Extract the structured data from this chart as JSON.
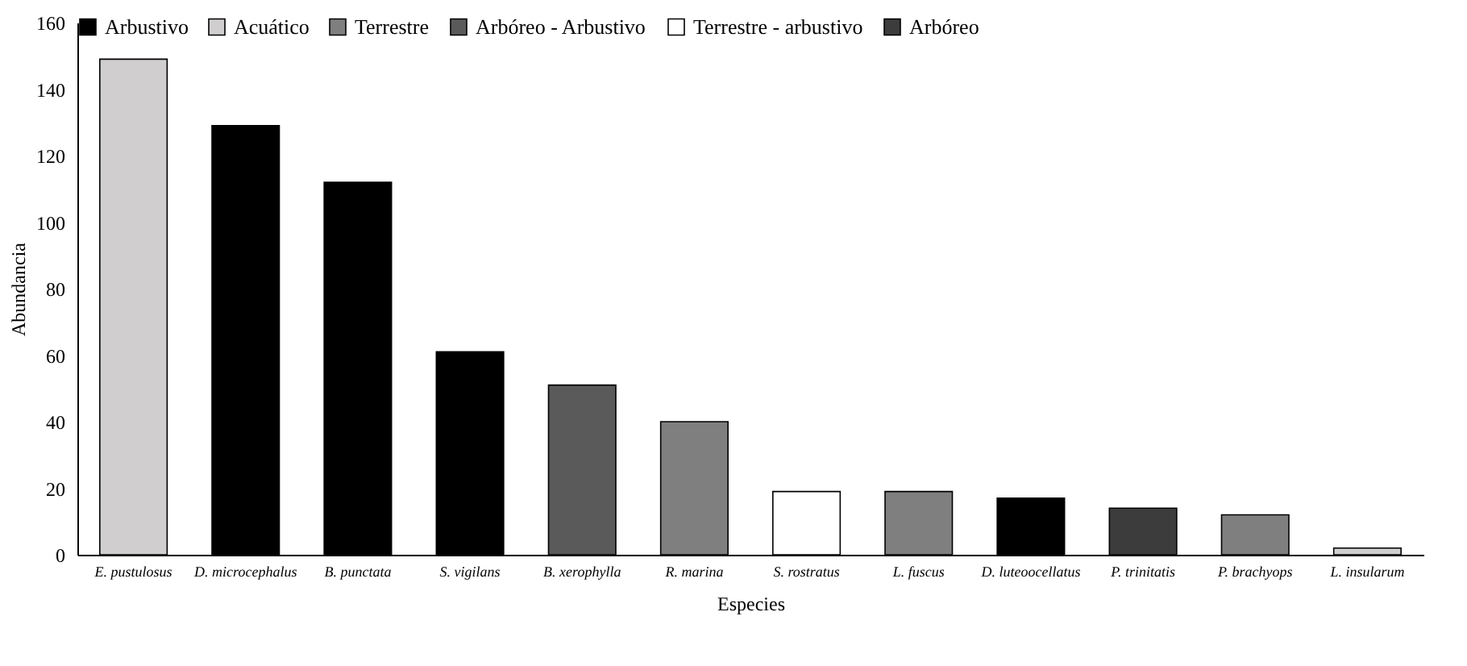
{
  "chart_data": {
    "type": "bar",
    "xlabel": "Especies",
    "ylabel": "Abundancia",
    "categories": [
      "E. pustulosus",
      "D. microcephalus",
      "B. punctata",
      "S. vigilans",
      "B. xerophylla",
      "R. marina",
      "S. rostratus",
      "L. fuscus",
      "D. luteoocellatus",
      "P. trinitatis",
      "P. brachyops",
      "L. insularum"
    ],
    "series": [
      {
        "name": "Arbustivo",
        "color": "#000000",
        "values": [
          null,
          129,
          112,
          61,
          null,
          null,
          null,
          null,
          17,
          null,
          null,
          null
        ]
      },
      {
        "name": "Acuático",
        "color": "#d0cece",
        "values": [
          149,
          null,
          null,
          null,
          null,
          null,
          null,
          null,
          null,
          null,
          null,
          2
        ]
      },
      {
        "name": "Terrestre",
        "color": "#7f7f7f",
        "values": [
          null,
          null,
          null,
          null,
          null,
          40,
          null,
          19,
          null,
          null,
          12,
          null
        ]
      },
      {
        "name": "Arbóreo - Arbustivo",
        "color": "#5a5a5a",
        "values": [
          null,
          null,
          null,
          null,
          51,
          null,
          null,
          null,
          null,
          null,
          null,
          null
        ]
      },
      {
        "name": "Terrestre - arbustivo",
        "color": "#ffffff",
        "values": [
          null,
          null,
          null,
          null,
          null,
          null,
          19,
          null,
          null,
          null,
          null,
          null
        ]
      },
      {
        "name": "Arbóreo",
        "color": "#3c3c3c",
        "values": [
          null,
          null,
          null,
          null,
          null,
          null,
          null,
          null,
          null,
          14,
          null,
          null
        ]
      }
    ],
    "ylim": [
      0,
      160
    ],
    "yticks": [
      0,
      20,
      40,
      60,
      80,
      100,
      120,
      140,
      160
    ],
    "grid": false,
    "legend": "top"
  }
}
